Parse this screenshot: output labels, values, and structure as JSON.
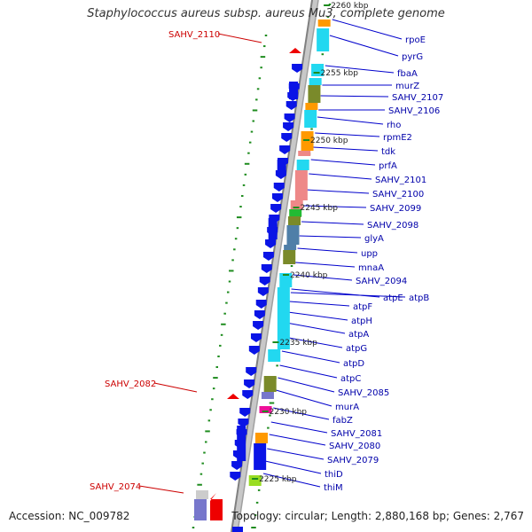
{
  "title": "Staphylococcus aureus subsp. aureus Mu3, complete genome",
  "accession": "Accession: NC_009782",
  "topology": "Topology: circular; Length: 2,880,168 bp; Genes: 2,767",
  "scale_marks": [
    "2260 kbp",
    "2255 kbp",
    "2250 kbp",
    "2245 kbp",
    "2240 kbp",
    "2235 kbp",
    "2230 kbp",
    "2225 kbp"
  ],
  "right_labels": [
    "rpoE",
    "pyrG",
    "fbaA",
    "murZ",
    "SAHV_2107",
    "SAHV_2106",
    "rho",
    "rpmE2",
    "tdk",
    "prfA",
    "SAHV_2101",
    "SAHV_2100",
    "SAHV_2099",
    "SAHV_2098",
    "glyA",
    "upp",
    "mnaA",
    "SAHV_2094",
    "atpE",
    "atpB",
    "atpF",
    "atpH",
    "atpA",
    "atpG",
    "atpD",
    "atpC",
    "SAHV_2085",
    "murA",
    "fabZ",
    "SAHV_2081",
    "SAHV_2080",
    "SAHV_2079",
    "thiD",
    "thiM"
  ],
  "left_labels": [
    "SAHV_2110",
    "SAHV_2082",
    "SAHV_2074"
  ],
  "colors": {
    "minus_strand": "#0a14e6",
    "red_feature": "#ee0000",
    "left_label": "#cc0000",
    "right_label": "#0000aa",
    "dots": "#1e8c1e",
    "cyan": "#22d8f0",
    "orange": "#ff9900",
    "olive": "#7a8a2a",
    "pink": "#ee8888",
    "slate": "#4f7fa8",
    "green": "#22bb33",
    "lime": "#99dd22",
    "magenta": "#ee1199",
    "purple": "#7777cc"
  }
}
